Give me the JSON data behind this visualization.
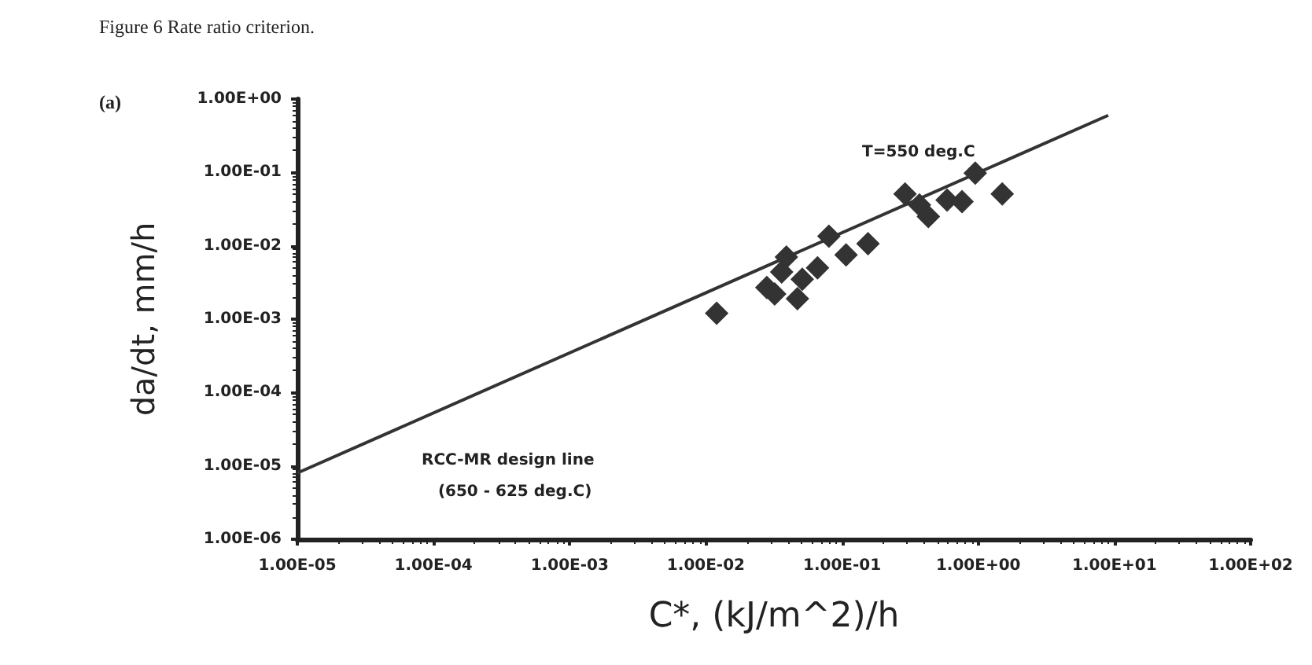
{
  "chart_data": {
    "type": "scatter",
    "title": "Figure 6 Rate ratio criterion.",
    "subtitle": "(a)",
    "xlabel": "C*, (kJ/m^2)/h",
    "ylabel": "da/dt, mm/h",
    "log": "xy",
    "grid": false,
    "marker": "diamond",
    "xlim": [
      1e-05,
      100
    ],
    "ylim": [
      1e-06,
      1
    ],
    "xticks": [
      {
        "value": 1e-05,
        "label": "1.00E-05"
      },
      {
        "value": 0.0001,
        "label": "1.00E-04"
      },
      {
        "value": 0.001,
        "label": "1.00E-03"
      },
      {
        "value": 0.01,
        "label": "1.00E-02"
      },
      {
        "value": 0.1,
        "label": "1.00E-01"
      },
      {
        "value": 1,
        "label": "1.00E+00"
      },
      {
        "value": 10,
        "label": "1.00E+01"
      },
      {
        "value": 100,
        "label": "1.00E+02"
      }
    ],
    "yticks": [
      {
        "value": 1e-06,
        "label": "1.00E-06"
      },
      {
        "value": 1e-05,
        "label": "1.00E-05"
      },
      {
        "value": 0.0001,
        "label": "1.00E-04"
      },
      {
        "value": 0.001,
        "label": "1.00E-03"
      },
      {
        "value": 0.01,
        "label": "1.00E-02"
      },
      {
        "value": 0.1,
        "label": "1.00E-01"
      },
      {
        "value": 1,
        "label": "1.00E+00"
      }
    ],
    "series": [
      {
        "color": "#333333",
        "x": [
          0.012,
          0.036,
          0.028,
          0.047,
          0.039,
          0.032,
          0.051,
          0.066,
          0.08,
          0.107,
          0.155,
          0.29,
          0.43,
          0.59,
          0.76,
          0.95,
          1.5,
          0.37
        ],
        "values": [
          0.0012,
          0.0044,
          0.0027,
          0.0019,
          0.007,
          0.0022,
          0.0035,
          0.005,
          0.0135,
          0.0075,
          0.0107,
          0.051,
          0.025,
          0.042,
          0.04,
          0.098,
          0.051,
          0.036
        ]
      },
      {
        "type": "line",
        "color": "#333333",
        "marker": "none",
        "line_style": "solid",
        "x": [
          1e-05,
          9
        ],
        "values": [
          8e-06,
          0.6
        ]
      }
    ],
    "annotations": [
      "T=550 deg.C",
      "RCC-MR design line\n   (650 - 625 deg.C)"
    ]
  }
}
